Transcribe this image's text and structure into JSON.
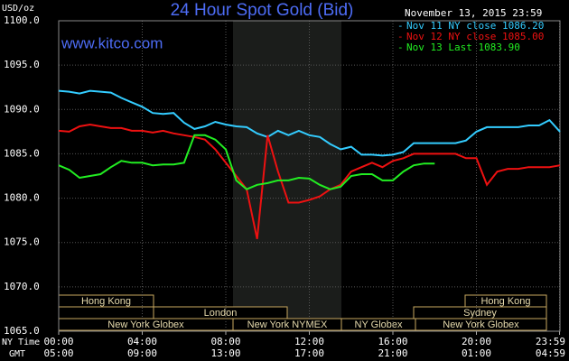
{
  "chart_data": {
    "type": "line",
    "title": "24 Hour Spot Gold (Bid)",
    "y_unit": "USD/oz",
    "timestamp": "November 13, 2015 23:59",
    "watermark": "www.kitco.com",
    "x": [
      0,
      0.5,
      1,
      1.5,
      2,
      2.5,
      3,
      3.5,
      4,
      4.5,
      5,
      5.5,
      6,
      6.5,
      7,
      7.5,
      8,
      8.5,
      9,
      9.5,
      10,
      10.5,
      11,
      11.5,
      12,
      12.5,
      13,
      13.5,
      14,
      14.5,
      15,
      15.5,
      16,
      16.5,
      17,
      17.5,
      18,
      18.5,
      19,
      19.5,
      20,
      20.5,
      21,
      21.5,
      22,
      22.5,
      23,
      23.5,
      24
    ],
    "series": [
      {
        "name": "Nov 11 NY close 1086.20",
        "color": "#33ccff",
        "values": [
          1092.1,
          1092.0,
          1091.8,
          1092.1,
          1092.0,
          1091.9,
          1091.3,
          1090.8,
          1090.3,
          1089.6,
          1089.5,
          1089.6,
          1088.5,
          1087.8,
          1088.1,
          1088.6,
          1088.3,
          1088.1,
          1088.0,
          1087.3,
          1086.9,
          1087.6,
          1087.1,
          1087.6,
          1087.1,
          1086.9,
          1086.1,
          1085.5,
          1085.8,
          1084.9,
          1084.9,
          1084.8,
          1084.9,
          1085.2,
          1086.2,
          1086.2,
          1086.2,
          1086.2,
          1086.2,
          1086.5,
          1087.5,
          1088.0,
          1088.0,
          1088.0,
          1088.0,
          1088.2,
          1088.2,
          1088.8,
          1087.5
        ]
      },
      {
        "name": "Nov 12 NY close 1085.00",
        "color": "#ee1111",
        "values": [
          1087.6,
          1087.5,
          1088.1,
          1088.3,
          1088.1,
          1087.9,
          1087.9,
          1087.6,
          1087.6,
          1087.4,
          1087.6,
          1087.3,
          1087.1,
          1086.9,
          1086.6,
          1085.5,
          1084.0,
          1082.5,
          1081.0,
          1075.4,
          1087.1,
          1083.0,
          1079.5,
          1079.5,
          1079.8,
          1080.2,
          1081.0,
          1081.5,
          1083.0,
          1083.5,
          1084.0,
          1083.5,
          1084.2,
          1084.5,
          1085.0,
          1085.0,
          1085.0,
          1085.0,
          1085.0,
          1084.5,
          1084.5,
          1081.5,
          1083.0,
          1083.3,
          1083.3,
          1083.5,
          1083.5,
          1083.5,
          1083.7
        ]
      },
      {
        "name": "Nov 13 Last 1083.90",
        "color": "#22ee22",
        "values": [
          1083.7,
          1083.2,
          1082.3,
          1082.5,
          1082.7,
          1083.5,
          1084.2,
          1084.0,
          1084.0,
          1083.7,
          1083.8,
          1083.8,
          1084.0,
          1087.1,
          1087.1,
          1086.6,
          1085.5,
          1082.0,
          1081.0,
          1081.5,
          1081.7,
          1082.0,
          1082.0,
          1082.3,
          1082.2,
          1081.5,
          1081.0,
          1081.3,
          1082.5,
          1082.7,
          1082.7,
          1082.0,
          1082.0,
          1083.0,
          1083.7,
          1083.9,
          1083.9,
          null,
          null,
          null,
          null,
          null,
          null,
          null,
          null,
          null,
          null,
          null,
          null
        ]
      }
    ],
    "xlim": [
      0,
      24
    ],
    "xticks": [
      {
        "value": 0,
        "label": "00:00"
      },
      {
        "value": 4,
        "label": "04:00"
      },
      {
        "value": 8,
        "label": "08:00"
      },
      {
        "value": 12,
        "label": "12:00"
      },
      {
        "value": 16,
        "label": "16:00"
      },
      {
        "value": 20,
        "label": "20:00"
      },
      {
        "value": 23.98,
        "label": "23:59"
      }
    ],
    "x_row_label": "NY Time",
    "x2_row_label": "GMT",
    "x2_labels": [
      "05:00",
      "09:00",
      "13:00",
      "17:00",
      "21:00",
      "01:00",
      "04:59"
    ],
    "ylim": [
      1065,
      1100
    ],
    "yticks": [
      {
        "value": 1065,
        "label": "1065.0"
      },
      {
        "value": 1070,
        "label": "1070.0"
      },
      {
        "value": 1075,
        "label": "1075.0"
      },
      {
        "value": 1080,
        "label": "1080.0"
      },
      {
        "value": 1085,
        "label": "1085.0"
      },
      {
        "value": 1090,
        "label": "1090.0"
      },
      {
        "value": 1095,
        "label": "1095.0"
      },
      {
        "value": 1100,
        "label": "1100.0"
      }
    ],
    "grid": true,
    "sessions": [
      "Hong Kong",
      "London",
      "New York Globex",
      "New York NYMEX",
      "NY Globex",
      "Hong Kong",
      "Sydney",
      "New York Globex"
    ]
  }
}
